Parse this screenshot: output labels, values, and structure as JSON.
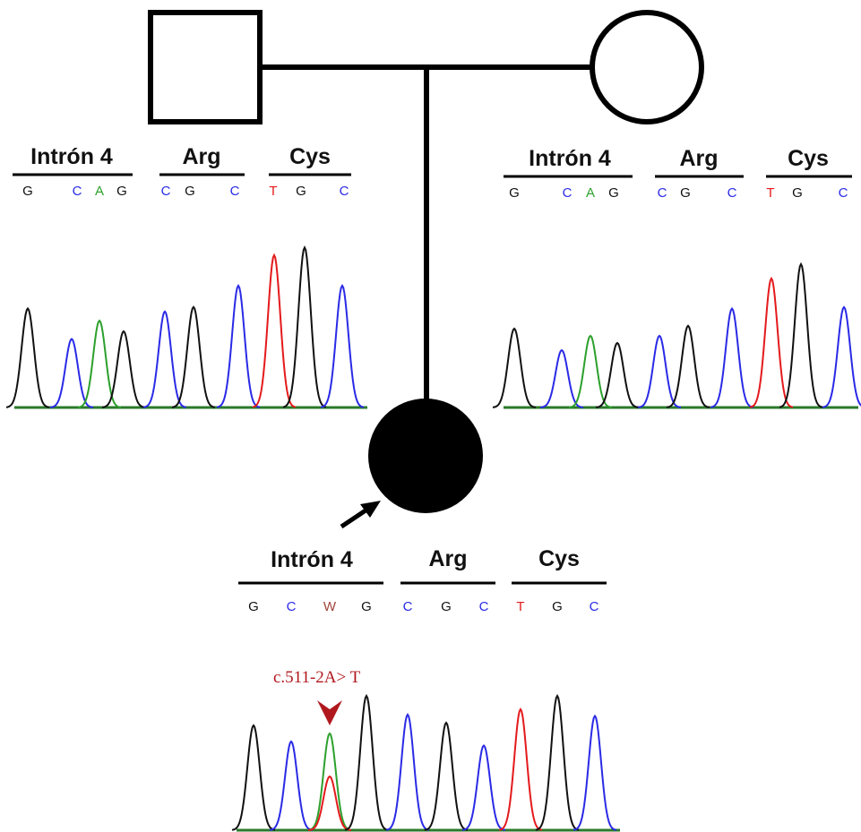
{
  "pedigree": {
    "father": {
      "sex": "male",
      "affected": false
    },
    "mother": {
      "sex": "female",
      "affected": false
    },
    "proband": {
      "sex": "female",
      "affected": true,
      "is_proband": true
    }
  },
  "colors": {
    "A": "#2ca02c",
    "C": "#2a2ae6",
    "G": "#111111",
    "T": "#e41a1c",
    "W": "#a0463c",
    "mutation": "#b0181e",
    "baseline": "#2a7a2a"
  },
  "father_panel": {
    "segments": [
      {
        "label": "Intrón 4",
        "bases": [
          "G",
          "C",
          "A",
          "G"
        ]
      },
      {
        "label": "Arg",
        "bases": [
          "C",
          "G",
          "C"
        ]
      },
      {
        "label": "Cys",
        "bases": [
          "T",
          "G",
          "C"
        ]
      }
    ]
  },
  "mother_panel": {
    "segments": [
      {
        "label": "Intrón 4",
        "bases": [
          "G",
          "C",
          "A",
          "G"
        ]
      },
      {
        "label": "Arg",
        "bases": [
          "C",
          "G",
          "C"
        ]
      },
      {
        "label": "Cys",
        "bases": [
          "T",
          "G",
          "C"
        ]
      }
    ]
  },
  "proband_panel": {
    "segments": [
      {
        "label": "Intrón 4",
        "bases": [
          "G",
          "C",
          "W",
          "G"
        ]
      },
      {
        "label": "Arg",
        "bases": [
          "C",
          "G",
          "C"
        ]
      },
      {
        "label": "Cys",
        "bases": [
          "T",
          "G",
          "C"
        ]
      }
    ],
    "mutation_label": "c.511-2A> T"
  },
  "chromatograms": {
    "father": [
      [
        "G",
        0.65
      ],
      [
        "C",
        0.45
      ],
      [
        "A",
        0.57
      ],
      [
        "G",
        0.5
      ],
      [
        "C",
        0.63
      ],
      [
        "G",
        0.66
      ],
      [
        "C",
        0.8
      ],
      [
        "T",
        1.0
      ],
      [
        "G",
        1.05
      ],
      [
        "C",
        0.8
      ]
    ],
    "mother": [
      [
        "G",
        0.55
      ],
      [
        "C",
        0.4
      ],
      [
        "A",
        0.5
      ],
      [
        "G",
        0.45
      ],
      [
        "C",
        0.5
      ],
      [
        "G",
        0.57
      ],
      [
        "C",
        0.69
      ],
      [
        "T",
        0.9
      ],
      [
        "G",
        1.0
      ],
      [
        "C",
        0.7
      ]
    ],
    "proband": [
      [
        "G",
        0.78
      ],
      [
        "C",
        0.66
      ],
      [
        "A",
        0.72
      ],
      [
        "T",
        0.4
      ],
      [
        "G",
        1.0
      ],
      [
        "C",
        0.86
      ],
      [
        "G",
        0.8
      ],
      [
        "C",
        0.63
      ],
      [
        "T",
        0.9
      ],
      [
        "G",
        1.0
      ],
      [
        "C",
        0.85
      ]
    ]
  }
}
